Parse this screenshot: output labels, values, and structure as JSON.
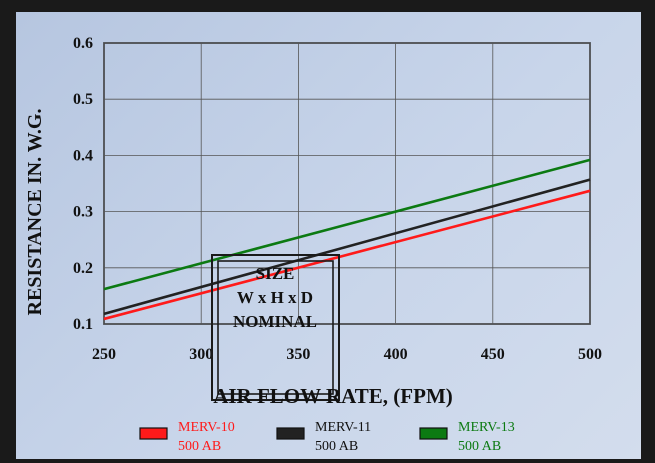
{
  "chart_data": {
    "type": "line",
    "title": "",
    "xlabel": "AIR FLOW RATE, (FPM)",
    "ylabel": "RESISTANCE IN. W.G.",
    "xlim": [
      250,
      500
    ],
    "ylim": [
      0.1,
      0.6
    ],
    "x_ticks": [
      "250",
      "300",
      "350",
      "400",
      "450",
      "500"
    ],
    "y_ticks": [
      "0.1",
      "0.2",
      "0.3",
      "0.4",
      "0.5",
      "0.6"
    ],
    "grid": true,
    "series": [
      {
        "name": "MERV-10",
        "sub": "500 AB",
        "color": "#ff1a1a",
        "x": [
          250,
          500
        ],
        "y": [
          0.109,
          0.337
        ]
      },
      {
        "name": "MERV-11",
        "sub": "500 AB",
        "color": "#222222",
        "x": [
          250,
          500
        ],
        "y": [
          0.118,
          0.357
        ]
      },
      {
        "name": "MERV-13",
        "sub": "500 AB",
        "color": "#0c7a12",
        "x": [
          250,
          500
        ],
        "y": [
          0.162,
          0.392
        ]
      }
    ],
    "annotation": {
      "lines": [
        "SIZE",
        "W x H x D",
        "NOMINAL"
      ]
    }
  }
}
